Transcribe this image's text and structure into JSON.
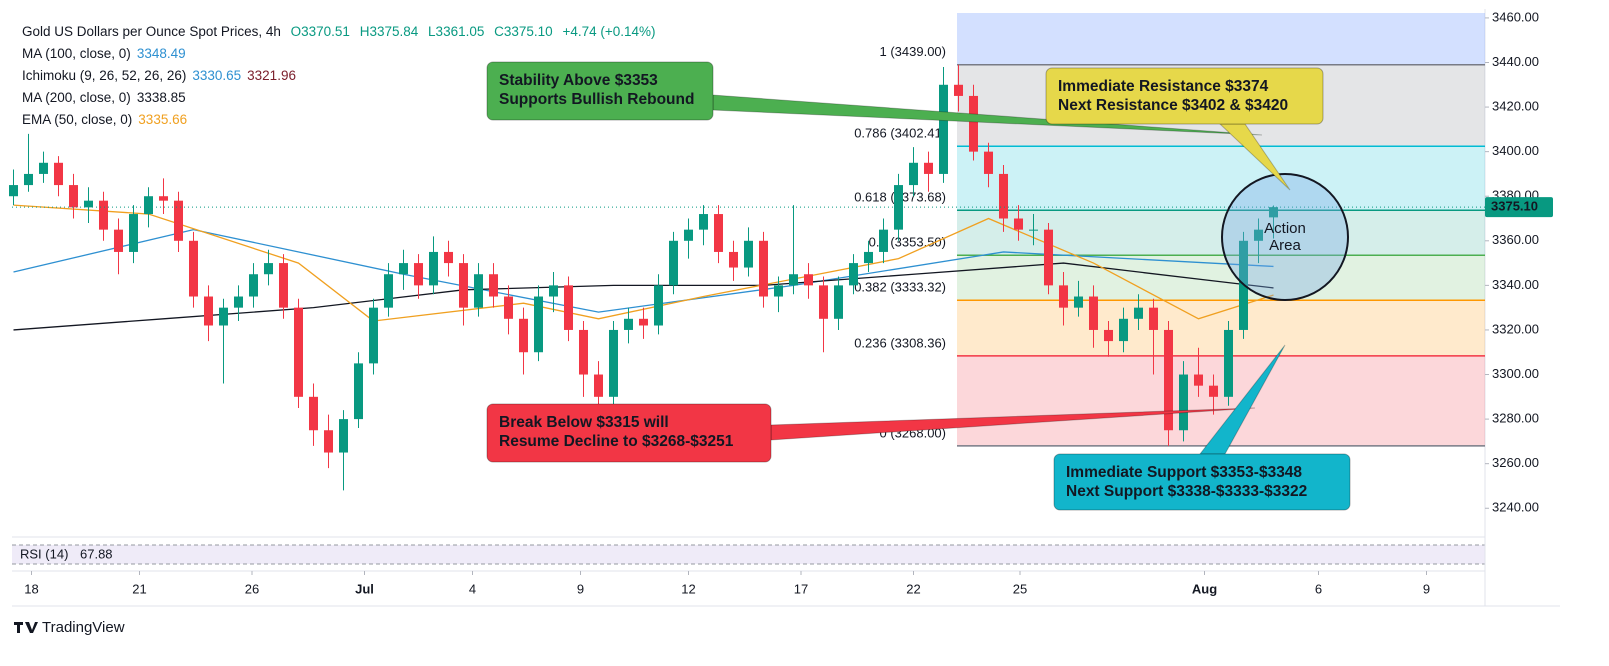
{
  "chart_data": {
    "type": "candlestick",
    "header": {
      "symbol": "Gold US Dollars per Ounce Spot Prices, 4h",
      "open": "O3370.51",
      "high": "H3375.84",
      "low": "L3361.05",
      "close": "C3375.10",
      "change": "+4.74 (+0.14%)",
      "change_color": "#089981"
    },
    "indicators": [
      {
        "name": "MA (100, close, 0)",
        "value": "3348.49",
        "color": "#2e90d1",
        "x": [
          0,
          12,
          26,
          39,
          52,
          66,
          84
        ],
        "values": [
          3346,
          3365,
          3345,
          3328,
          3340,
          3355,
          3348.49
        ]
      },
      {
        "name": "Ichimoku (9, 26, 52, 26, 26)",
        "value": "3330.65",
        "color": "#2e90d1",
        "value2": "3321.96",
        "color2": "#7a1d2a"
      },
      {
        "name": "MA (200, close, 0)",
        "value": "3338.85",
        "color": "#131722",
        "x": [
          0,
          10,
          20,
          30,
          40,
          50,
          60,
          70,
          80,
          84
        ],
        "values": [
          3320,
          3325,
          3330,
          3338,
          3340,
          3340,
          3345,
          3350,
          3342,
          3338.85
        ]
      },
      {
        "name": "EMA (50, close, 0)",
        "value": "3335.66",
        "color": "#f0a020",
        "x": [
          0,
          9,
          19,
          24,
          34,
          39,
          46,
          59,
          65,
          72,
          79,
          84
        ],
        "values": [
          3376,
          3372,
          3350,
          3324,
          3332,
          3325,
          3335,
          3352,
          3370,
          3350,
          3325,
          3335.66
        ]
      }
    ],
    "up_color": "#089981",
    "down_color": "#f23645",
    "candles": [
      [
        3380,
        3392,
        3376,
        3385
      ],
      [
        3385,
        3408,
        3382,
        3390
      ],
      [
        3390,
        3400,
        3386,
        3395
      ],
      [
        3395,
        3398,
        3380,
        3385
      ],
      [
        3385,
        3390,
        3370,
        3375
      ],
      [
        3375,
        3384,
        3368,
        3378
      ],
      [
        3378,
        3382,
        3360,
        3365
      ],
      [
        3365,
        3370,
        3345,
        3355
      ],
      [
        3355,
        3376,
        3350,
        3372
      ],
      [
        3372,
        3384,
        3366,
        3380
      ],
      [
        3380,
        3388,
        3372,
        3378
      ],
      [
        3378,
        3382,
        3355,
        3360
      ],
      [
        3360,
        3364,
        3330,
        3335
      ],
      [
        3335,
        3340,
        3315,
        3322
      ],
      [
        3322,
        3334,
        3296,
        3330
      ],
      [
        3330,
        3340,
        3324,
        3335
      ],
      [
        3335,
        3350,
        3330,
        3345
      ],
      [
        3345,
        3356,
        3340,
        3350
      ],
      [
        3350,
        3354,
        3325,
        3330
      ],
      [
        3330,
        3334,
        3285,
        3290
      ],
      [
        3290,
        3296,
        3268,
        3275
      ],
      [
        3275,
        3282,
        3258,
        3265
      ],
      [
        3265,
        3284,
        3248,
        3280
      ],
      [
        3280,
        3310,
        3276,
        3305
      ],
      [
        3305,
        3334,
        3300,
        3330
      ],
      [
        3330,
        3350,
        3326,
        3345
      ],
      [
        3345,
        3356,
        3338,
        3350
      ],
      [
        3350,
        3354,
        3334,
        3340
      ],
      [
        3340,
        3362,
        3336,
        3355
      ],
      [
        3355,
        3360,
        3344,
        3350
      ],
      [
        3350,
        3354,
        3322,
        3330
      ],
      [
        3330,
        3350,
        3326,
        3345
      ],
      [
        3345,
        3350,
        3330,
        3335
      ],
      [
        3335,
        3340,
        3318,
        3325
      ],
      [
        3325,
        3330,
        3300,
        3310
      ],
      [
        3310,
        3340,
        3306,
        3335
      ],
      [
        3335,
        3346,
        3328,
        3340
      ],
      [
        3340,
        3344,
        3315,
        3320
      ],
      [
        3320,
        3324,
        3290,
        3300
      ],
      [
        3300,
        3306,
        3284,
        3290
      ],
      [
        3290,
        3324,
        3286,
        3320
      ],
      [
        3320,
        3330,
        3314,
        3325
      ],
      [
        3325,
        3330,
        3316,
        3322
      ],
      [
        3322,
        3345,
        3318,
        3340
      ],
      [
        3340,
        3364,
        3336,
        3360
      ],
      [
        3360,
        3370,
        3352,
        3365
      ],
      [
        3365,
        3376,
        3358,
        3372
      ],
      [
        3372,
        3376,
        3350,
        3355
      ],
      [
        3355,
        3360,
        3342,
        3348
      ],
      [
        3348,
        3366,
        3344,
        3360
      ],
      [
        3360,
        3364,
        3330,
        3335
      ],
      [
        3335,
        3344,
        3328,
        3340
      ],
      [
        3340,
        3376,
        3336,
        3345
      ],
      [
        3345,
        3350,
        3334,
        3340
      ],
      [
        3340,
        3344,
        3310,
        3325
      ],
      [
        3325,
        3344,
        3320,
        3340
      ],
      [
        3340,
        3354,
        3336,
        3350
      ],
      [
        3350,
        3360,
        3346,
        3355
      ],
      [
        3355,
        3370,
        3350,
        3365
      ],
      [
        3365,
        3390,
        3360,
        3385
      ],
      [
        3385,
        3402,
        3380,
        3395
      ],
      [
        3395,
        3400,
        3382,
        3390
      ],
      [
        3390,
        3438,
        3386,
        3430
      ],
      [
        3430,
        3439,
        3418,
        3425
      ],
      [
        3425,
        3430,
        3396,
        3400
      ],
      [
        3400,
        3404,
        3384,
        3390
      ],
      [
        3390,
        3394,
        3364,
        3370
      ],
      [
        3370,
        3376,
        3360,
        3365
      ],
      [
        3365,
        3372,
        3358,
        3365
      ],
      [
        3365,
        3368,
        3336,
        3340
      ],
      [
        3340,
        3346,
        3322,
        3330
      ],
      [
        3330,
        3342,
        3326,
        3335
      ],
      [
        3335,
        3340,
        3312,
        3320
      ],
      [
        3320,
        3324,
        3308,
        3315
      ],
      [
        3315,
        3330,
        3310,
        3325
      ],
      [
        3325,
        3336,
        3320,
        3330
      ],
      [
        3330,
        3334,
        3300,
        3320
      ],
      [
        3320,
        3324,
        3268,
        3275
      ],
      [
        3275,
        3306,
        3270,
        3300
      ],
      [
        3300,
        3312,
        3290,
        3295
      ],
      [
        3295,
        3300,
        3282,
        3290
      ],
      [
        3290,
        3324,
        3286,
        3320
      ],
      [
        3320,
        3364,
        3316,
        3360
      ],
      [
        3360,
        3370,
        3350,
        3365
      ],
      [
        3370.51,
        3375.84,
        3361.05,
        3375.1
      ]
    ],
    "last_price": {
      "value": 3375.1,
      "label": "3375.10"
    },
    "xlim": [
      -0.1,
      98.1
    ],
    "xticks": [
      {
        "value": 1.2,
        "label": "18"
      },
      {
        "value": 8.4,
        "label": "21"
      },
      {
        "value": 15.9,
        "label": "26"
      },
      {
        "value": 23.4,
        "label": "Jul"
      },
      {
        "value": 30.6,
        "label": "4"
      },
      {
        "value": 37.8,
        "label": "9"
      },
      {
        "value": 45,
        "label": "12"
      },
      {
        "value": 52.5,
        "label": "17"
      },
      {
        "value": 60,
        "label": "22"
      },
      {
        "value": 67.1,
        "label": "25"
      },
      {
        "value": 79.4,
        "label": "Aug"
      },
      {
        "value": 87,
        "label": "6"
      },
      {
        "value": 94.2,
        "label": "9"
      }
    ],
    "ylim": [
      3228,
      3464
    ],
    "yticks": [
      {
        "value": 3240,
        "label": "3240.00"
      },
      {
        "value": 3260,
        "label": "3260.00"
      },
      {
        "value": 3280,
        "label": "3280.00"
      },
      {
        "value": 3300,
        "label": "3300.00"
      },
      {
        "value": 3320,
        "label": "3320.00"
      },
      {
        "value": 3340,
        "label": "3340.00"
      },
      {
        "value": 3360,
        "label": "3360.00"
      },
      {
        "value": 3380,
        "label": "3380.00"
      },
      {
        "value": 3400,
        "label": "3400.00"
      },
      {
        "value": 3420,
        "label": "3420.00"
      },
      {
        "value": 3440,
        "label": "3440.00"
      },
      {
        "value": 3460,
        "label": "3460.00"
      }
    ],
    "fib": {
      "top_fill": "rgba(80,130,255,0.25)",
      "levels": [
        {
          "label": "1 (3439.00)",
          "value": 3439.0,
          "color": "#787b86",
          "fill": "rgba(120,123,134,0.2)"
        },
        {
          "label": "0.786 (3402.41)",
          "value": 3402.41,
          "color": "#00bcd4",
          "fill": "rgba(0,188,212,0.2)"
        },
        {
          "label": "0.618 (3373.68)",
          "value": 3373.68,
          "color": "#089981",
          "fill": "rgba(8,153,129,0.17)"
        },
        {
          "label": "0.5 (3353.50)",
          "value": 3353.5,
          "color": "#4caf50",
          "fill": "rgba(76,175,80,0.17)"
        },
        {
          "label": "0.382 (3333.32)",
          "value": 3333.32,
          "color": "#ff9800",
          "fill": "rgba(255,152,0,0.2)"
        },
        {
          "label": "0.236 (3308.36)",
          "value": 3308.36,
          "color": "#f23645",
          "fill": "rgba(242,54,69,0.2)"
        },
        {
          "label": "0 (3268.00)",
          "value": 3268.0,
          "color": "#787b86"
        }
      ]
    },
    "annotations": [
      {
        "lines": [
          "Stability Above $3353",
          "Supports Bullish Rebound"
        ],
        "color": "#4caf50"
      },
      {
        "lines": [
          "Break Below $3315 will",
          "Resume Decline to $3268-$3251"
        ],
        "color": "#f23645",
        "text_color": "#ffffff"
      },
      {
        "lines": [
          "Immediate Resistance $3374",
          "Next Resistance $3402 & $3420"
        ],
        "color": "#e6d84a"
      },
      {
        "lines": [
          "Immediate Support $3353-$3348",
          "Next Support $3338-$3333-$3322"
        ],
        "color": "#12b5cb"
      }
    ],
    "action_area": [
      "Action",
      "Area"
    ],
    "rsi_label": "RSI (14)",
    "rsi_value": "67.88",
    "brand": "TradingView"
  }
}
